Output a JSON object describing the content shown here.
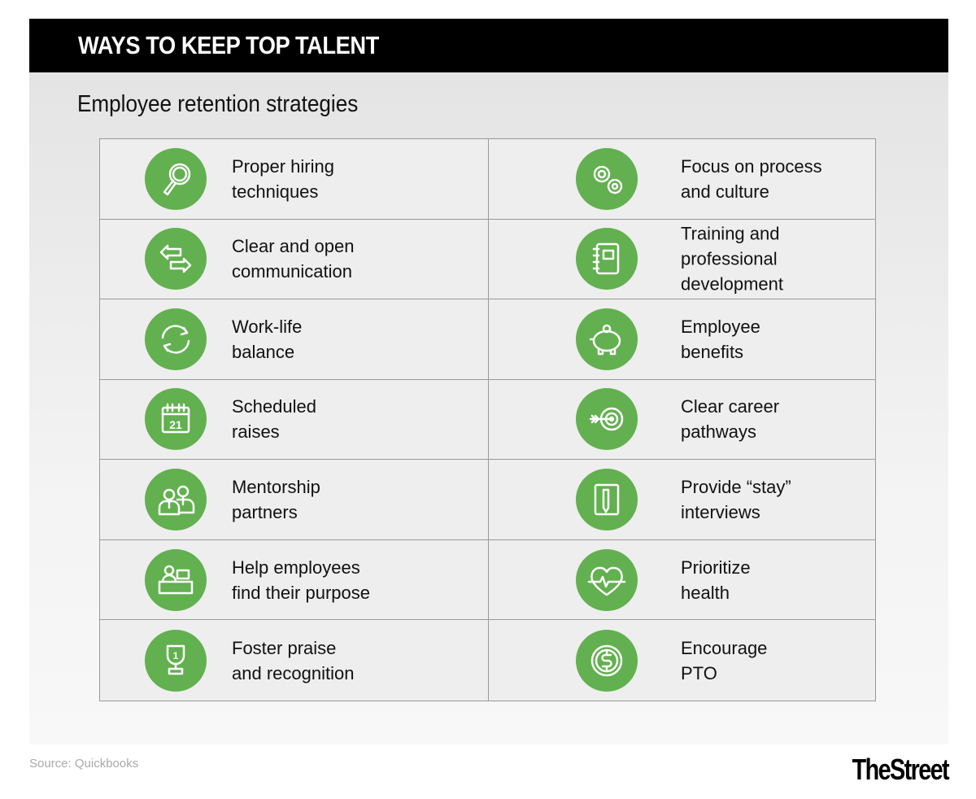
{
  "header": {
    "title": "WAYS TO KEEP TOP TALENT"
  },
  "subtitle": "Employee retention strategies",
  "accent_color": "#62b04f",
  "strategies": [
    {
      "label": "Proper hiring\ntechniques",
      "icon": "magnifier-icon"
    },
    {
      "label": "Focus on process\nand culture",
      "icon": "gears-icon"
    },
    {
      "label": "Clear and open\ncommunication",
      "icon": "arrows-exchange-icon"
    },
    {
      "label": "Training and\nprofessional\ndevelopment",
      "icon": "notebook-icon"
    },
    {
      "label": "Work-life\nbalance",
      "icon": "cycle-arrows-icon"
    },
    {
      "label": "Employee\nbenefits",
      "icon": "piggy-bank-icon"
    },
    {
      "label": "Scheduled\nraises",
      "icon": "calendar-icon"
    },
    {
      "label": "Clear career\npathways",
      "icon": "target-arrow-icon"
    },
    {
      "label": "Mentorship\npartners",
      "icon": "two-people-icon"
    },
    {
      "label": "Provide “stay”\ninterviews",
      "icon": "notepad-pencil-icon"
    },
    {
      "label": "Help employees\nfind their purpose",
      "icon": "person-at-desk-icon"
    },
    {
      "label": "Prioritize\nhealth",
      "icon": "heart-pulse-icon"
    },
    {
      "label": "Foster praise\nand recognition",
      "icon": "trophy-icon"
    },
    {
      "label": "Encourage\nPTO",
      "icon": "dollar-coin-icon"
    }
  ],
  "calendar_number": "21",
  "trophy_number": "1",
  "source": "Source: Quickbooks",
  "logo": "TheStreet"
}
